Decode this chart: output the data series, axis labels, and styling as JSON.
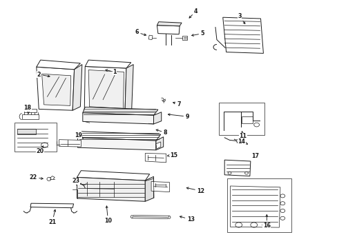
{
  "bg_color": "#ffffff",
  "line_color": "#1a1a1a",
  "fig_width": 4.89,
  "fig_height": 3.6,
  "dpi": 100,
  "parts_labels": [
    [
      1,
      0.34,
      0.71,
      0.305,
      0.72
    ],
    [
      2,
      0.115,
      0.7,
      0.155,
      0.69
    ],
    [
      3,
      0.71,
      0.935,
      0.73,
      0.895
    ],
    [
      4,
      0.58,
      0.955,
      0.555,
      0.92
    ],
    [
      5,
      0.6,
      0.865,
      0.56,
      0.855
    ],
    [
      6,
      0.405,
      0.87,
      0.44,
      0.855
    ],
    [
      7,
      0.53,
      0.58,
      0.505,
      0.59
    ],
    [
      8,
      0.49,
      0.465,
      0.455,
      0.48
    ],
    [
      9,
      0.555,
      0.53,
      0.49,
      0.54
    ],
    [
      10,
      0.32,
      0.11,
      0.315,
      0.18
    ],
    [
      11,
      0.72,
      0.45,
      0.715,
      0.48
    ],
    [
      12,
      0.595,
      0.23,
      0.545,
      0.245
    ],
    [
      13,
      0.565,
      0.115,
      0.525,
      0.13
    ],
    [
      14,
      0.715,
      0.43,
      0.74,
      0.415
    ],
    [
      15,
      0.515,
      0.375,
      0.488,
      0.37
    ],
    [
      16,
      0.79,
      0.09,
      0.79,
      0.145
    ],
    [
      17,
      0.755,
      0.37,
      0.745,
      0.36
    ],
    [
      18,
      0.082,
      0.565,
      0.085,
      0.54
    ],
    [
      19,
      0.232,
      0.455,
      0.248,
      0.44
    ],
    [
      20,
      0.118,
      0.39,
      0.132,
      0.42
    ],
    [
      21,
      0.155,
      0.105,
      0.165,
      0.165
    ],
    [
      22,
      0.098,
      0.285,
      0.135,
      0.278
    ],
    [
      23,
      0.225,
      0.27,
      0.228,
      0.25
    ]
  ]
}
